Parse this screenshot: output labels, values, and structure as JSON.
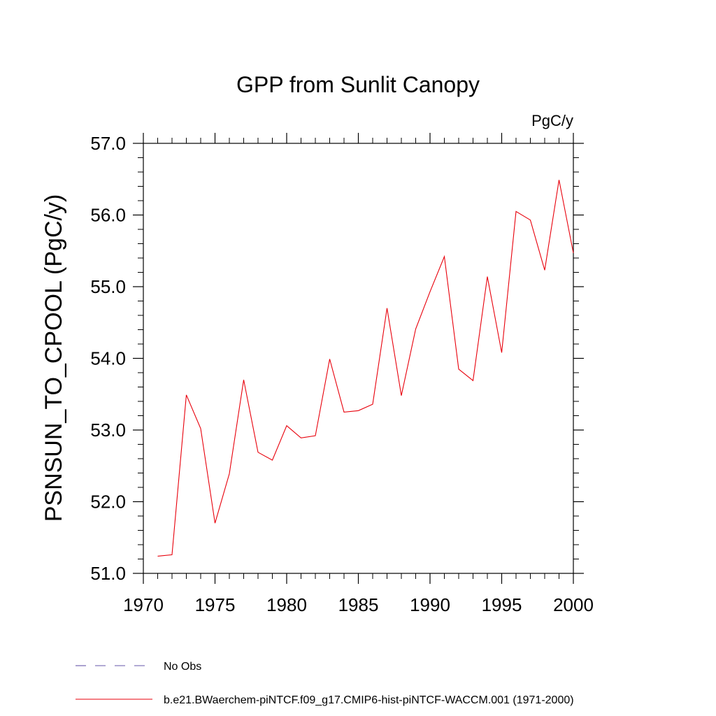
{
  "chart_data": {
    "type": "line",
    "title": "GPP from Sunlit Canopy",
    "units_label": "PgC/y",
    "ylabel": "PSNSUN_TO_CPOOL  (PgC/y)",
    "xlabel": "",
    "xlim": [
      1970,
      2000
    ],
    "ylim": [
      51.0,
      57.0
    ],
    "x_ticks": [
      1970,
      1975,
      1980,
      1985,
      1990,
      1995,
      2000
    ],
    "x_tick_labels": [
      "1970",
      "1975",
      "1980",
      "1985",
      "1990",
      "1995",
      "2000"
    ],
    "y_ticks": [
      51.0,
      52.0,
      53.0,
      54.0,
      55.0,
      56.0,
      57.0
    ],
    "y_tick_labels": [
      "51.0",
      "52.0",
      "53.0",
      "54.0",
      "55.0",
      "56.0",
      "57.0"
    ],
    "grid": false,
    "legend_position": "bottom",
    "legend": [
      {
        "label": "No Obs",
        "color": "#6655aa",
        "dash": "dashed"
      },
      {
        "label": "b.e21.BWaerchem-piNTCF.f09_g17.CMIP6-hist-piNTCF-WACCM.001 (1971-2000)",
        "color": "#e8000b",
        "dash": "solid"
      }
    ],
    "series": [
      {
        "name": "b.e21.BWaerchem-piNTCF.f09_g17.CMIP6-hist-piNTCF-WACCM.001 (1971-2000)",
        "color": "#e8000b",
        "x": [
          1971,
          1972,
          1973,
          1974,
          1975,
          1976,
          1977,
          1978,
          1979,
          1980,
          1981,
          1982,
          1983,
          1984,
          1985,
          1986,
          1987,
          1988,
          1989,
          1990,
          1991,
          1992,
          1993,
          1994,
          1995,
          1996,
          1997,
          1998,
          1999,
          2000
        ],
        "values": [
          51.24,
          51.26,
          53.49,
          53.02,
          51.7,
          52.39,
          53.7,
          52.69,
          52.58,
          53.06,
          52.89,
          52.92,
          53.99,
          53.25,
          53.27,
          53.36,
          54.7,
          53.48,
          54.41,
          54.93,
          55.42,
          53.85,
          53.69,
          55.14,
          54.08,
          56.05,
          55.93,
          55.23,
          56.49,
          55.47
        ]
      }
    ]
  }
}
